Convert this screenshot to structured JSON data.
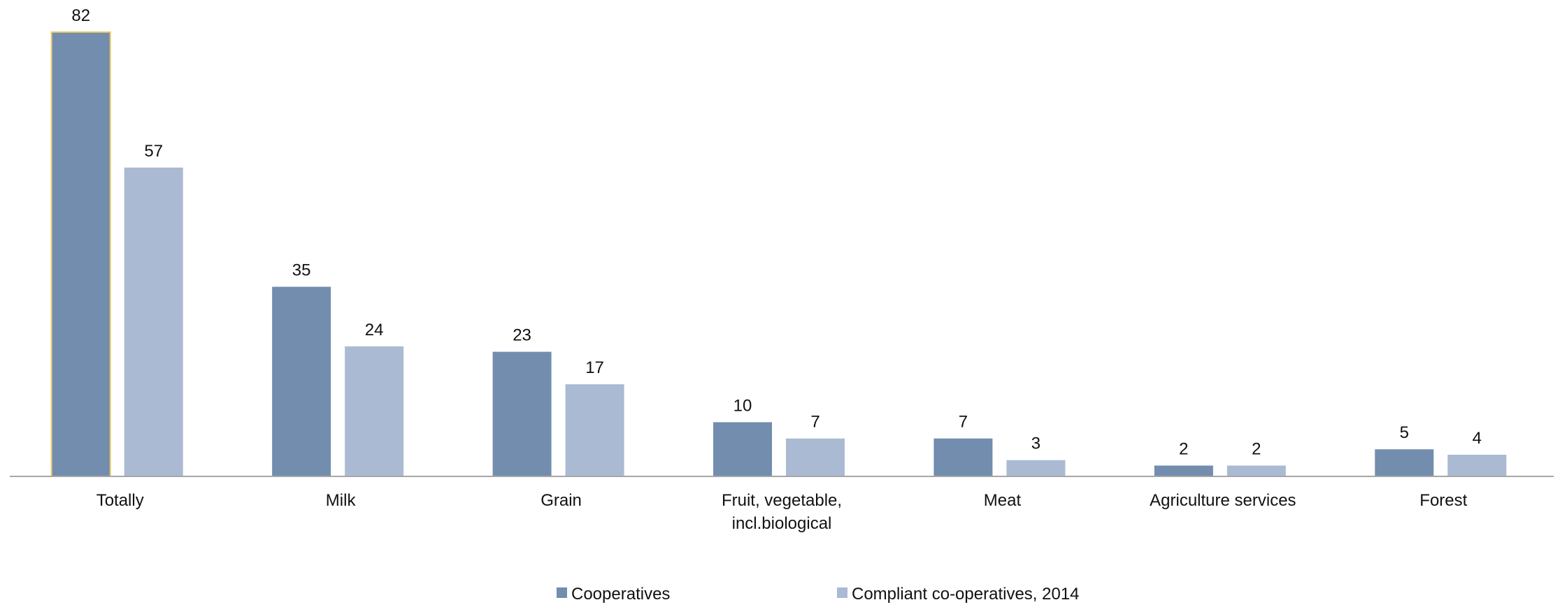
{
  "chart_data": {
    "type": "bar",
    "categories": [
      [
        "Totally"
      ],
      [
        "Milk"
      ],
      [
        "Grain"
      ],
      [
        "Fruit, vegetable,",
        "incl.biological"
      ],
      [
        "Meat"
      ],
      [
        "Agriculture services"
      ],
      [
        "Forest"
      ]
    ],
    "series": [
      {
        "name": "Cooperatives",
        "values": [
          82,
          35,
          23,
          10,
          7,
          2,
          5
        ],
        "color": "#728DAE"
      },
      {
        "name": "Compliant co-operatives, 2014",
        "values": [
          57,
          24,
          17,
          7,
          3,
          2,
          4
        ],
        "color": "#AABAD3"
      }
    ],
    "ylim": [
      0,
      82
    ],
    "grid": false,
    "legend": "bottom",
    "highlight": {
      "series": 0,
      "category": 0,
      "outline_color": "#E8C766"
    },
    "axis_color": "#A6A6A6"
  }
}
